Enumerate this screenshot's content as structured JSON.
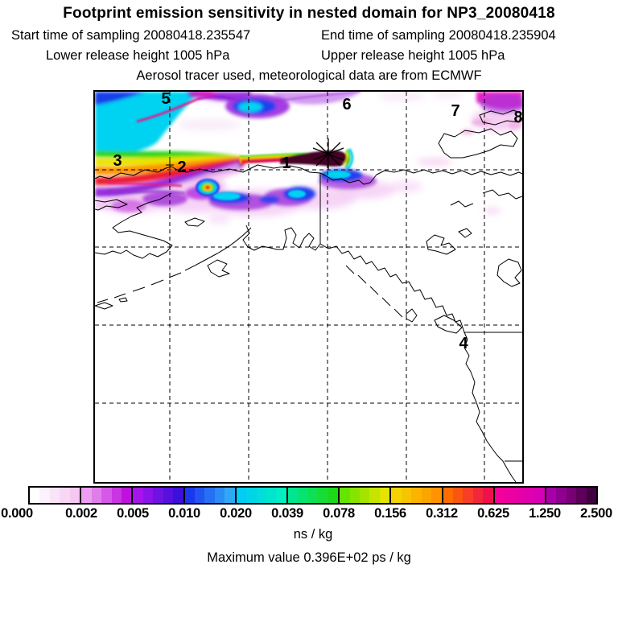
{
  "header": {
    "title": "Footprint emission sensitivity in nested domain for NP3_20080418",
    "start_text": "Start time of sampling 20080418.235547",
    "end_text": "End time of sampling 20080418.235904",
    "lower_text": "Lower release height 1005 hPa",
    "upper_text": "Upper release height 1005 hPa",
    "tracer_text": "Aerosol tracer used, meteorological data are from ECMWF"
  },
  "map": {
    "stations": [
      "1",
      "2",
      "3",
      "4",
      "5",
      "6",
      "7",
      "8"
    ],
    "release_marker": "asterisk-star"
  },
  "colorbar": {
    "tick_labels": [
      "0.000",
      "0.002",
      "0.005",
      "0.010",
      "0.020",
      "0.039",
      "0.078",
      "0.156",
      "0.312",
      "0.625",
      "1.250",
      "2.500"
    ],
    "units": "ns / kg",
    "segments": [
      [
        "#FFFFFF",
        "#F5C8F2"
      ],
      [
        "#EC9FF0",
        "#BE12DC"
      ],
      [
        "#A414EC",
        "#3C10DA"
      ],
      [
        "#1C38EE",
        "#30A8F6"
      ],
      [
        "#00CCF4",
        "#00EEC0"
      ],
      [
        "#00E690",
        "#1CD818"
      ],
      [
        "#66E400",
        "#E4E400"
      ],
      [
        "#F4D400",
        "#FF9400"
      ],
      [
        "#FF6C00",
        "#EF104E"
      ],
      [
        "#F4009A",
        "#D800B4"
      ],
      [
        "#A800A8",
        "#430040"
      ]
    ]
  },
  "footer": {
    "max_text": "Maximum value  0.396E+02 ps / kg"
  },
  "chart_data": {
    "type": "heatmap",
    "title": "Footprint emission sensitivity in nested domain for NP3_20080418",
    "variable": "footprint emission sensitivity",
    "units": "ns / kg",
    "levels": [
      0.0,
      0.002,
      0.005,
      0.01,
      0.02,
      0.039,
      0.078,
      0.156,
      0.312,
      0.625,
      1.25,
      2.5
    ],
    "maximum_value": "0.396E+02 ps / kg",
    "start_time_of_sampling": "20080418.235547",
    "end_time_of_sampling": "20080418.235904",
    "lower_release_height": "1005 hPa",
    "upper_release_height": "1005 hPa",
    "tracer": "Aerosol tracer used, meteorological data are from ECMWF",
    "site": "NP3_20080418",
    "station_markers": [
      "1",
      "2",
      "3",
      "4",
      "5",
      "6",
      "7",
      "8"
    ],
    "legend_position": "bottom",
    "notes": "Plume of high sensitivity extends westward from release point (asterisk) near station 1; rainbow fan maximum in upper-left; secondary band south of the main streak; magenta patch in upper-right corner."
  }
}
